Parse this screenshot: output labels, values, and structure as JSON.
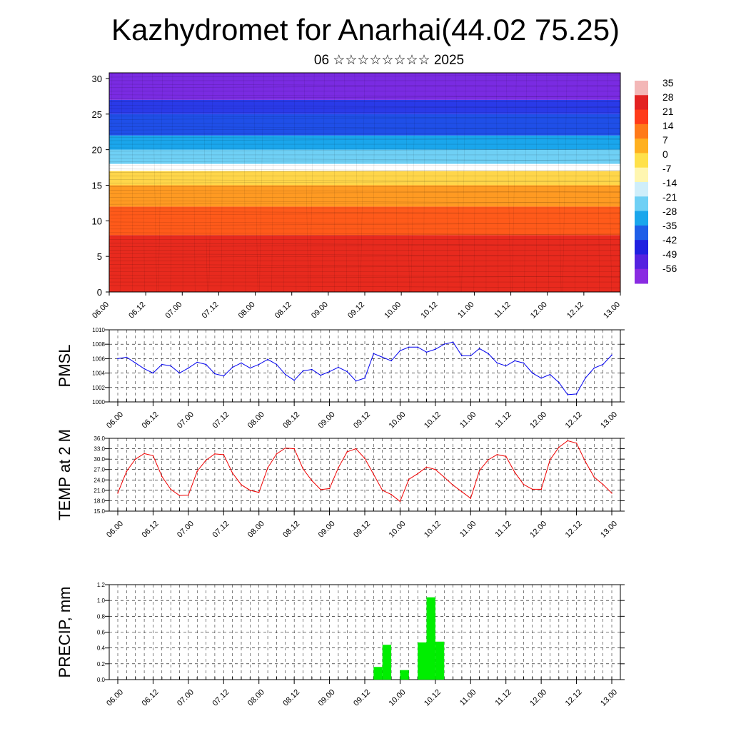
{
  "page": {
    "title": "Kazhydromet for Anarhai(44.02 75.25)",
    "subtitle": "06 ☆☆☆☆☆☆☆☆ 2025"
  },
  "chart_data": [
    {
      "type": "heatmap",
      "title": "",
      "x_tick_labels": [
        "06.00",
        "06.12",
        "07.00",
        "07.12",
        "08.00",
        "08.12",
        "09.00",
        "09.12",
        "10.00",
        "10.12",
        "11.00",
        "11.12",
        "12.00",
        "12.12",
        "13.00"
      ],
      "y_ticks": [
        0,
        5,
        10,
        15,
        20,
        25,
        30
      ],
      "ylim": [
        0,
        30.8
      ],
      "colorbar_labels": [
        "35",
        "28",
        "21",
        "14",
        "7",
        "0",
        "-7",
        "-14",
        "-21",
        "-28",
        "-35",
        "-42",
        "-49",
        "-56"
      ],
      "colorbar_colors": [
        "#f3b7b7",
        "#e32222",
        "#ff3b1a",
        "#ff7a1a",
        "#ffb020",
        "#ffe14a",
        "#fff6b0",
        "#cfeefa",
        "#6fd0f5",
        "#1aa6ec",
        "#1f5fe8",
        "#2020e0",
        "#5522e0",
        "#8a2be2"
      ],
      "layers": [
        {
          "z_top": 8,
          "color": "#e82a1e"
        },
        {
          "z_top": 12,
          "color": "#ff5a1a"
        },
        {
          "z_top": 15,
          "color": "#ff9a22"
        },
        {
          "z_top": 17,
          "color": "#ffd64a"
        },
        {
          "z_top": 18,
          "color": "#ffffff"
        },
        {
          "z_top": 20,
          "color": "#6fd0f5"
        },
        {
          "z_top": 22,
          "color": "#1aa6ec"
        },
        {
          "z_top": 25,
          "color": "#1f4fe8"
        },
        {
          "z_top": 27,
          "color": "#2a3ae8"
        },
        {
          "z_top": 30.8,
          "color": "#7a2be2"
        }
      ]
    },
    {
      "type": "line",
      "ylabel": "PMSL",
      "ylim": [
        1000,
        1010
      ],
      "y_ticks": [
        1000,
        1002,
        1004,
        1006,
        1008,
        1010
      ],
      "x_tick_labels": [
        "06.00",
        "06.12",
        "07.00",
        "07.12",
        "08.00",
        "08.12",
        "09.00",
        "09.12",
        "10.00",
        "10.12",
        "11.00",
        "11.12",
        "12.00",
        "12.12",
        "13.00"
      ],
      "color": "#0000ee",
      "values": [
        1006.0,
        1006.2,
        1005.4,
        1004.6,
        1004.0,
        1005.2,
        1005.0,
        1004.0,
        1004.7,
        1005.5,
        1005.2,
        1003.9,
        1003.6,
        1004.8,
        1005.4,
        1004.7,
        1005.2,
        1005.9,
        1005.2,
        1003.8,
        1003.0,
        1004.3,
        1004.5,
        1003.7,
        1004.2,
        1004.8,
        1004.2,
        1002.9,
        1003.3,
        1006.7,
        1006.2,
        1005.7,
        1007.1,
        1007.6,
        1007.6,
        1006.9,
        1007.3,
        1008.0,
        1008.3,
        1006.4,
        1006.4,
        1007.4,
        1006.7,
        1005.4,
        1005.0,
        1005.7,
        1005.4,
        1004.0,
        1003.3,
        1003.8,
        1002.7,
        1001.0,
        1001.1,
        1003.3,
        1004.7,
        1005.2,
        1006.5
      ]
    },
    {
      "type": "line",
      "ylabel": "TEMP at 2 M",
      "ylim": [
        15,
        36
      ],
      "y_ticks_labels": [
        "15.0",
        "18.0",
        "21.0",
        "24.0",
        "27.0",
        "30.0",
        "33.0",
        "36.0"
      ],
      "x_tick_labels": [
        "06.00",
        "06.12",
        "07.00",
        "07.12",
        "08.00",
        "08.12",
        "09.00",
        "09.12",
        "10.00",
        "10.12",
        "11.00",
        "11.12",
        "12.00",
        "12.12",
        "13.00"
      ],
      "color": "#ee0000",
      "values": [
        20.2,
        26.5,
        30.0,
        31.6,
        31.0,
        25.0,
        21.3,
        19.5,
        19.6,
        26.5,
        29.7,
        31.5,
        31.3,
        26.0,
        22.6,
        21.0,
        20.4,
        27.5,
        31.5,
        33.2,
        33.0,
        27.2,
        23.8,
        21.2,
        21.5,
        27.5,
        32.1,
        33.0,
        30.2,
        25.6,
        21.0,
        19.8,
        17.8,
        24.2,
        25.8,
        27.7,
        27.0,
        24.8,
        22.5,
        20.6,
        18.7,
        26.7,
        29.8,
        31.3,
        30.8,
        26.2,
        22.7,
        21.3,
        21.3,
        29.8,
        33.4,
        35.3,
        34.6,
        29.3,
        24.8,
        22.7,
        20.2
      ]
    },
    {
      "type": "bar",
      "ylabel": "PRECIP, mm",
      "ylim": [
        0,
        1.2
      ],
      "y_ticks_labels": [
        "0.0",
        "0.2",
        "0.4",
        "0.6",
        "0.8",
        "1.0",
        "1.2"
      ],
      "x_tick_labels": [
        "06.00",
        "06.12",
        "07.00",
        "07.12",
        "08.00",
        "08.12",
        "09.00",
        "09.12",
        "10.00",
        "10.12",
        "11.00",
        "11.12",
        "12.00",
        "12.12",
        "13.00"
      ],
      "color": "#00ee00",
      "bars": [
        {
          "x": 29.5,
          "value": 0.16
        },
        {
          "x": 30.5,
          "value": 0.44
        },
        {
          "x": 32.5,
          "value": 0.12
        },
        {
          "x": 34.5,
          "value": 0.47
        },
        {
          "x": 35.5,
          "value": 1.04
        },
        {
          "x": 36.5,
          "value": 0.48
        }
      ]
    }
  ]
}
